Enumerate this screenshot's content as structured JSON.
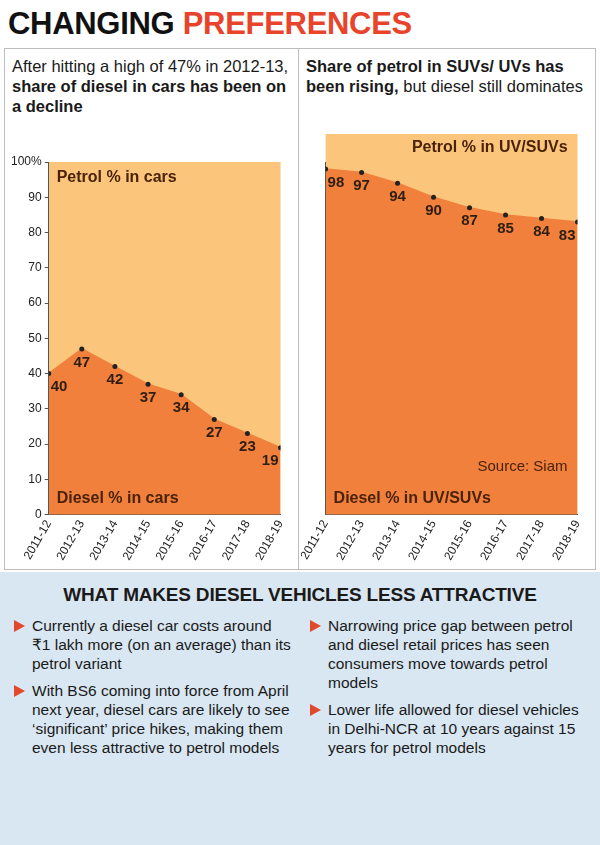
{
  "header": {
    "title": [
      "CHANGING",
      "PREFERENCES"
    ]
  },
  "chart_data": [
    {
      "type": "area",
      "title": [
        "After hitting a high of 47% in 2012-13,",
        "share of diesel in cars has been on a decline"
      ],
      "categories": [
        "2011-12",
        "2012-13",
        "2013-14",
        "2014-15",
        "2015-16",
        "2016-17",
        "2017-18",
        "2018-19"
      ],
      "values": [
        40,
        47,
        42,
        37,
        34,
        27,
        23,
        19
      ],
      "color": "#f0803c",
      "ylim": [
        0,
        100
      ],
      "yticks": [
        0,
        10,
        20,
        30,
        40,
        50,
        60,
        70,
        80,
        90,
        {
          "value": 100,
          "label": "100%"
        }
      ],
      "grid": false,
      "data_labels": true,
      "annotations": [
        "Petrol % in cars",
        "Diesel % in cars"
      ]
    },
    {
      "type": "area",
      "title": [
        "Share of petrol in SUVs/ UVs has been rising,",
        "but diesel still dominates"
      ],
      "categories": [
        "2011-12",
        "2012-13",
        "2013-14",
        "2014-15",
        "2015-16",
        "2016-17",
        "2017-18",
        "2018-19"
      ],
      "values": [
        98,
        97,
        94,
        90,
        87,
        85,
        84,
        83
      ],
      "color": "#f0803c",
      "ylim": [
        0,
        100
      ],
      "grid": false,
      "data_labels": true,
      "tick_labels": "x",
      "annotations": [
        "Petrol % in UV/SUVs",
        "Source: Siam",
        "Diesel % in UV/SUVs"
      ]
    }
  ],
  "bullets": {
    "title": "WHAT MAKES DIESEL VEHICLES LESS ATTRACTIVE",
    "items": [
      "Currently a diesel car costs around ₹1 lakh more (on an average) than its petrol variant",
      "With BS6 coming into force from April next year, diesel cars are likely to see ‘significant’ price hikes, making them even less attractive to petrol models",
      "Narrowing price gap between petrol and diesel retail prices has seen consumers move towards petrol models",
      "Lower life allowed for diesel vehicles in Delhi-NCR at 10 years against 15 years for petrol models"
    ]
  }
}
